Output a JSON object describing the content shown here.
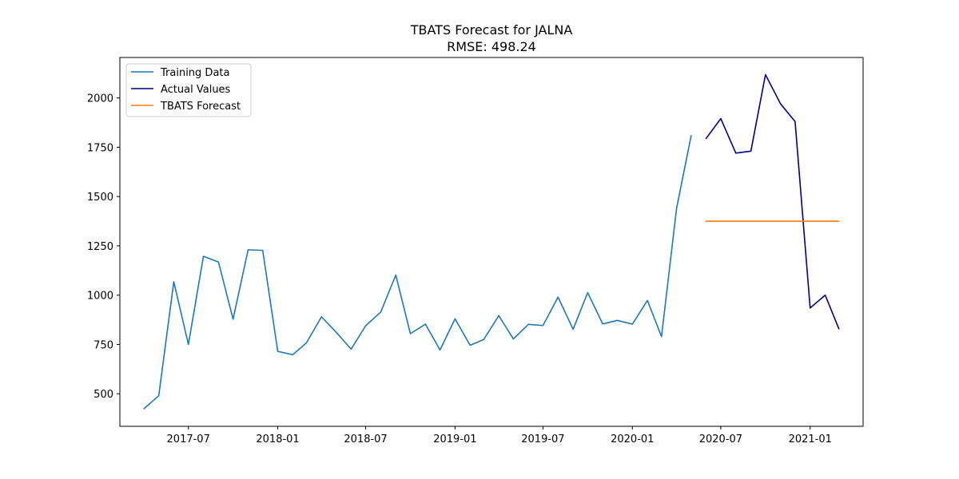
{
  "chart_data": {
    "type": "line",
    "title": "TBATS Forecast for JALNA",
    "subtitle": "RMSE: 498.24",
    "xlabel": "",
    "ylabel": "",
    "x_ticks": [
      "2017-07",
      "2018-01",
      "2018-07",
      "2019-01",
      "2019-07",
      "2020-01",
      "2020-07",
      "2021-01"
    ],
    "y_ticks": [
      500,
      750,
      1000,
      1250,
      1500,
      1750,
      2000
    ],
    "xlim": [
      "2017-02-10",
      "2021-04-20"
    ],
    "ylim": [
      335,
      2205
    ],
    "grid": false,
    "legend_position": "top-left",
    "series": [
      {
        "name": "Training Data",
        "color": "#1f77b4",
        "x": [
          "2017-04",
          "2017-05",
          "2017-06",
          "2017-07",
          "2017-08",
          "2017-09",
          "2017-10",
          "2017-11",
          "2017-12",
          "2018-01",
          "2018-02",
          "2018-03",
          "2018-04",
          "2018-05",
          "2018-06",
          "2018-07",
          "2018-08",
          "2018-09",
          "2018-10",
          "2018-11",
          "2018-12",
          "2019-01",
          "2019-02",
          "2019-03",
          "2019-04",
          "2019-05",
          "2019-06",
          "2019-07",
          "2019-08",
          "2019-09",
          "2019-10",
          "2019-11",
          "2019-12",
          "2020-01",
          "2020-02",
          "2020-03",
          "2020-04",
          "2020-05"
        ],
        "values": [
          425,
          490,
          1068,
          750,
          1197,
          1168,
          878,
          1230,
          1227,
          715,
          698,
          758,
          890,
          813,
          726,
          845,
          914,
          1102,
          805,
          853,
          722,
          880,
          746,
          775,
          896,
          778,
          852,
          846,
          990,
          827,
          1013,
          854,
          872,
          853,
          973,
          790,
          1440,
          1808
        ]
      },
      {
        "name": "Actual Values",
        "color": "#000080",
        "x": [
          "2020-06",
          "2020-07",
          "2020-08",
          "2020-09",
          "2020-10",
          "2020-11",
          "2020-12",
          "2021-01",
          "2021-02",
          "2021-03"
        ],
        "values": [
          1795,
          1895,
          1720,
          1730,
          2118,
          1970,
          1880,
          935,
          1000,
          830
        ]
      },
      {
        "name": "TBATS Forecast",
        "color": "#ff7f0e",
        "x": [
          "2020-06",
          "2020-07",
          "2020-08",
          "2020-09",
          "2020-10",
          "2020-11",
          "2020-12",
          "2021-01",
          "2021-02",
          "2021-03"
        ],
        "values": [
          1375,
          1375,
          1375,
          1375,
          1375,
          1375,
          1375,
          1375,
          1375,
          1375
        ]
      }
    ]
  }
}
